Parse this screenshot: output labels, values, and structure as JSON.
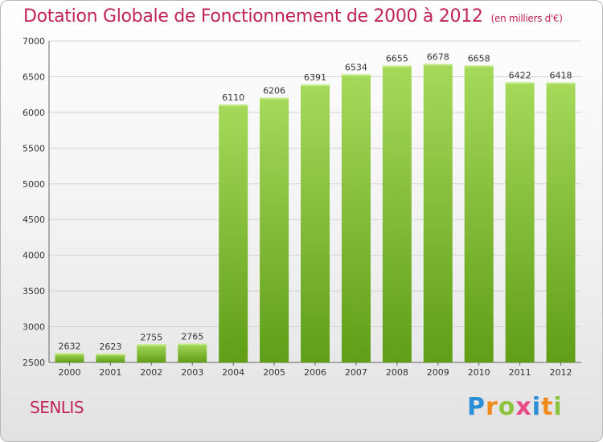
{
  "title": "Dotation Globale de Fonctionnement de 2000 à 2012",
  "subtitle": "(en milliers d'€)",
  "commune": "SENLIS",
  "logo": {
    "letters": [
      "P",
      "r",
      "o",
      "x",
      "i",
      "t",
      "i"
    ],
    "colors": [
      "#2b8fd6",
      "#f08a1c",
      "#8bc43f",
      "#e94a8a",
      "#2b8fd6",
      "#f08a1c",
      "#8bc43f"
    ]
  },
  "colors": {
    "bar_top": "#a6d95a",
    "bar_bottom": "#5f9e16",
    "title": "#c0245a"
  },
  "chart_data": {
    "type": "bar",
    "categories": [
      "2000",
      "2001",
      "2002",
      "2003",
      "2004",
      "2005",
      "2006",
      "2007",
      "2008",
      "2009",
      "2010",
      "2011",
      "2012"
    ],
    "values": [
      2632,
      2623,
      2755,
      2765,
      6110,
      6206,
      6391,
      6534,
      6655,
      6678,
      6658,
      6422,
      6418
    ],
    "data_labels": [
      "2632",
      "2623",
      "2755",
      "2765",
      "6110",
      "6206",
      "6391",
      "6534",
      "6655",
      "6678",
      "6658",
      "6422",
      "6418"
    ],
    "yticks": [
      2500,
      3000,
      3500,
      4000,
      4500,
      5000,
      5500,
      6000,
      6500,
      7000
    ],
    "ylim": [
      2500,
      7000
    ],
    "grid": true,
    "title": "Dotation Globale de Fonctionnement de 2000 à 2012",
    "xlabel": "",
    "ylabel": ""
  }
}
